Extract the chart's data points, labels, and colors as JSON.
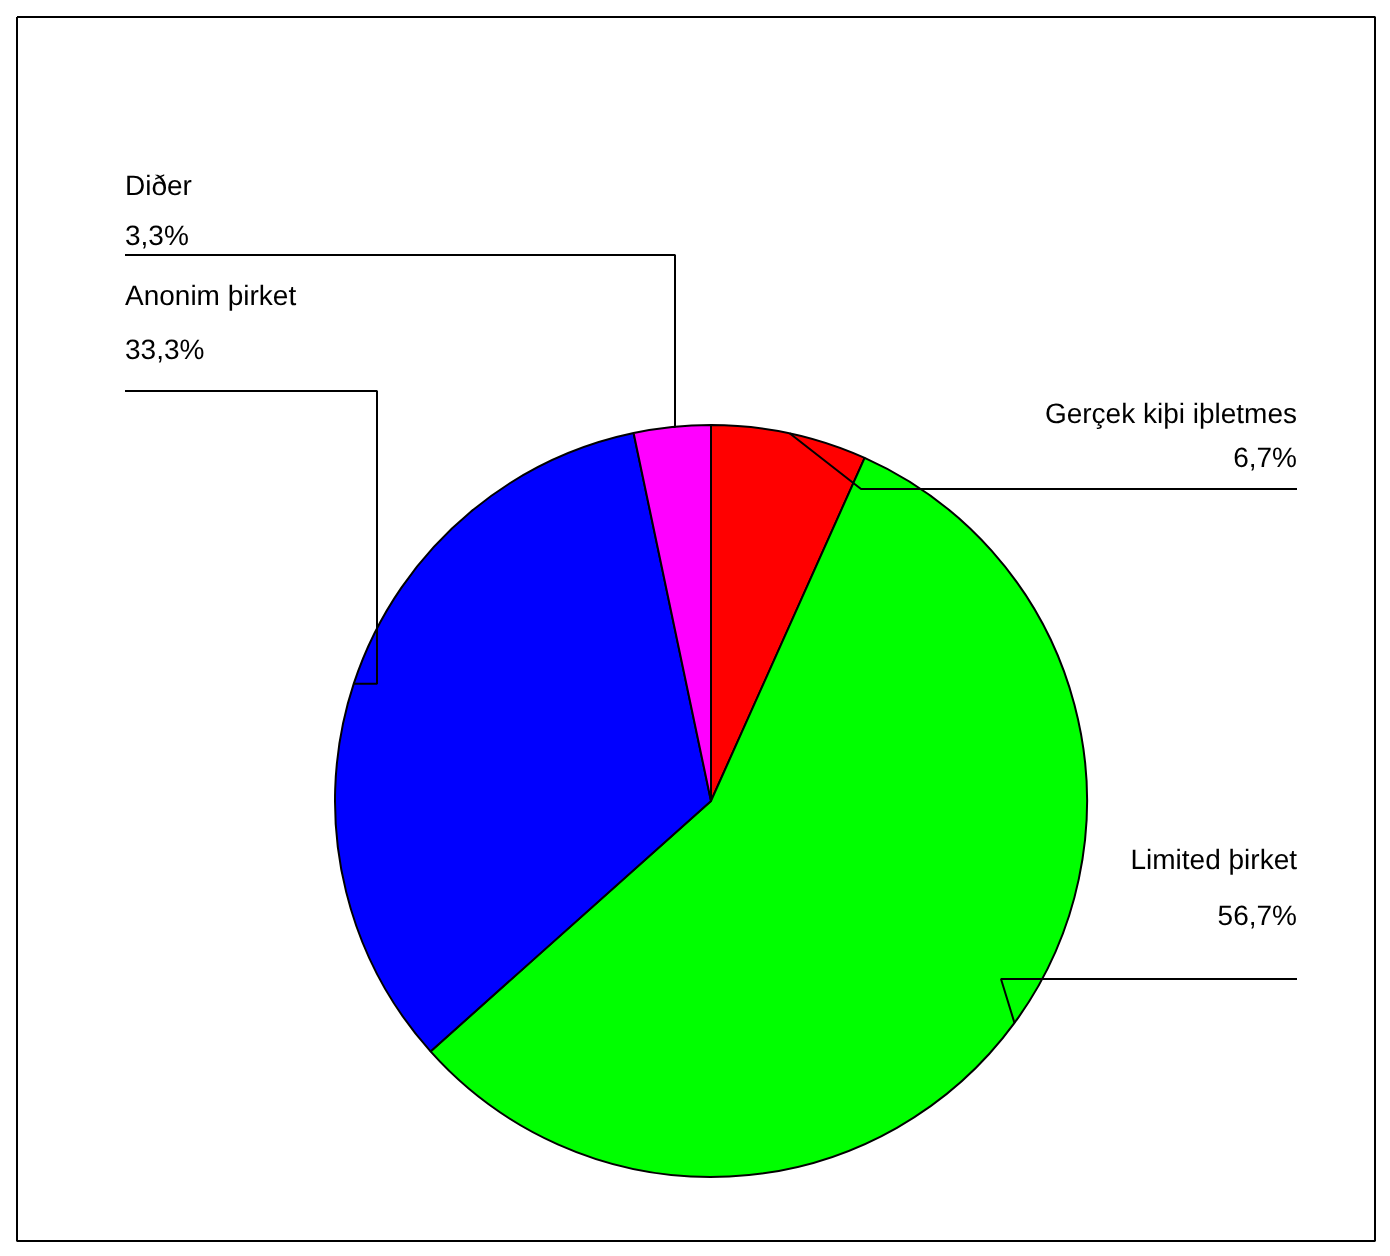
{
  "chart_data": {
    "type": "pie",
    "categories": [
      "Gerçek kiþi iþletmes",
      "Limited þirket",
      "Anonim þirket",
      "Diðer"
    ],
    "values": [
      6.7,
      56.7,
      33.3,
      3.3
    ],
    "colors": [
      "#ff0000",
      "#00ff00",
      "#0000ff",
      "#ff00ff"
    ],
    "value_labels": [
      "6,7%",
      "56,7%",
      "33,3%",
      "3,3%"
    ]
  }
}
